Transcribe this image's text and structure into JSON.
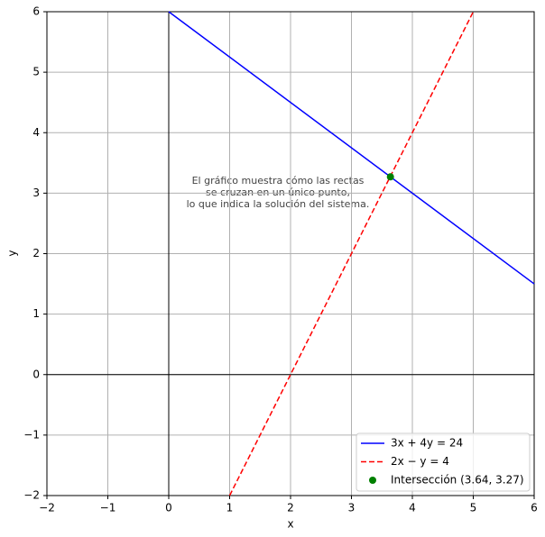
{
  "chart_data": {
    "type": "line",
    "annotation": [
      "El gráfico muestra cómo las rectas",
      "se cruzan en un único punto,",
      "lo que indica la solución del sistema."
    ],
    "xlabel": "x",
    "ylabel": "y",
    "series": [
      {
        "name": "3x + 4y = 24",
        "color": "#0000ff",
        "style": "solid",
        "x": [
          0,
          6
        ],
        "values": [
          6,
          1.5
        ]
      },
      {
        "name": "2x − y = 4",
        "color": "#ff0000",
        "style": "dashed",
        "x": [
          1,
          5
        ],
        "values": [
          -2,
          6
        ]
      },
      {
        "name": "Intersección (3.64, 3.27)",
        "color": "#008000",
        "style": "point",
        "x": [
          3.64
        ],
        "values": [
          3.27
        ]
      }
    ],
    "xlim": [
      -2,
      6
    ],
    "ylim": [
      -2,
      6
    ],
    "xticks": [
      {
        "value": -2,
        "label": "−2"
      },
      {
        "value": -1,
        "label": "−1"
      },
      0,
      1,
      2,
      3,
      4,
      5,
      6
    ],
    "yticks": [
      {
        "value": -2,
        "label": "−2"
      },
      {
        "value": -1,
        "label": "−1"
      },
      0,
      1,
      2,
      3,
      4,
      5,
      6
    ],
    "grid": true,
    "zero_axes": true,
    "legend": "lower right"
  }
}
